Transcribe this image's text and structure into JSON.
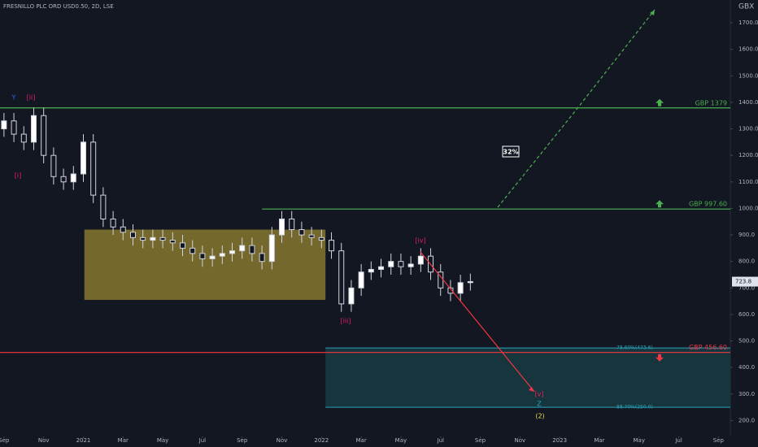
{
  "chart_data": {
    "type": "candlestick",
    "title": "FRESNILLO PLC ORD USD0.50, 2D, LSE",
    "currency": "GBX",
    "ylim": [
      140,
      1786
    ],
    "xlim": [
      -0.2,
      36.6
    ],
    "yticks": [
      {
        "value": 200,
        "label": "200.0"
      },
      {
        "value": 300,
        "label": "300.0"
      },
      {
        "value": 400,
        "label": "400.0"
      },
      {
        "value": 500,
        "label": "500.0"
      },
      {
        "value": 600,
        "label": "600.0"
      },
      {
        "value": 700,
        "label": "700.0"
      },
      {
        "value": 800,
        "label": "800.0"
      },
      {
        "value": 900,
        "label": "900.0"
      },
      {
        "value": 1000,
        "label": "1000.0"
      },
      {
        "value": 1100,
        "label": "1100.0"
      },
      {
        "value": 1200,
        "label": "1200.0"
      },
      {
        "value": 1300,
        "label": "1300.0"
      },
      {
        "value": 1400,
        "label": "1400.0"
      },
      {
        "value": 1500,
        "label": "1500.0"
      },
      {
        "value": 1600,
        "label": "1600.0"
      },
      {
        "value": 1700,
        "label": "1700.0"
      }
    ],
    "xticks": [
      {
        "value": 0,
        "label": "Sep"
      },
      {
        "value": 2,
        "label": "Nov"
      },
      {
        "value": 4,
        "label": "2021"
      },
      {
        "value": 6,
        "label": "Mar"
      },
      {
        "value": 8,
        "label": "May"
      },
      {
        "value": 10,
        "label": "Jul"
      },
      {
        "value": 12,
        "label": "Sep"
      },
      {
        "value": 14,
        "label": "Nov"
      },
      {
        "value": 16,
        "label": "2022"
      },
      {
        "value": 18,
        "label": "Mar"
      },
      {
        "value": 20,
        "label": "May"
      },
      {
        "value": 22,
        "label": "Jul"
      },
      {
        "value": 24,
        "label": "Sep"
      },
      {
        "value": 26,
        "label": "Nov"
      },
      {
        "value": 28,
        "label": "2023"
      },
      {
        "value": 30,
        "label": "Mar"
      },
      {
        "value": 32,
        "label": "May"
      },
      {
        "value": 34,
        "label": "Jul"
      },
      {
        "value": 36,
        "label": "Sep"
      }
    ],
    "x": [
      0,
      0.5,
      1,
      1.5,
      2,
      2.5,
      3,
      3.5,
      4,
      4.5,
      5,
      5.5,
      6,
      6.5,
      7,
      7.5,
      8,
      8.5,
      9,
      9.5,
      10,
      10.5,
      11,
      11.5,
      12,
      12.5,
      13,
      13.5,
      14,
      14.5,
      15,
      15.5,
      16,
      16.5,
      17,
      17.5,
      18,
      18.5,
      19,
      19.5,
      20,
      20.5,
      21,
      21.5,
      22,
      22.5,
      23,
      23.5
    ],
    "open": [
      1300,
      1330,
      1280,
      1250,
      1350,
      1200,
      1120,
      1100,
      1130,
      1250,
      1050,
      960,
      930,
      910,
      890,
      880,
      890,
      880,
      870,
      850,
      830,
      810,
      820,
      830,
      840,
      860,
      830,
      800,
      900,
      960,
      920,
      900,
      890,
      880,
      840,
      640,
      700,
      760,
      770,
      780,
      800,
      780,
      790,
      820,
      760,
      700,
      680,
      720
    ],
    "high": [
      1360,
      1360,
      1310,
      1380,
      1380,
      1230,
      1150,
      1160,
      1280,
      1280,
      1080,
      990,
      960,
      940,
      920,
      920,
      920,
      910,
      900,
      880,
      860,
      850,
      860,
      870,
      890,
      890,
      860,
      930,
      990,
      990,
      950,
      930,
      920,
      910,
      870,
      730,
      790,
      800,
      810,
      830,
      830,
      820,
      850,
      850,
      790,
      730,
      750,
      754
    ],
    "low": [
      1270,
      1250,
      1220,
      1220,
      1170,
      1090,
      1070,
      1070,
      1100,
      1020,
      930,
      900,
      880,
      860,
      850,
      850,
      850,
      840,
      820,
      800,
      780,
      780,
      790,
      800,
      810,
      800,
      770,
      770,
      870,
      890,
      870,
      860,
      850,
      810,
      610,
      610,
      670,
      730,
      740,
      750,
      750,
      750,
      760,
      730,
      670,
      650,
      650,
      690
    ],
    "close": [
      1330,
      1280,
      1250,
      1350,
      1200,
      1120,
      1100,
      1130,
      1250,
      1050,
      960,
      930,
      910,
      890,
      880,
      890,
      880,
      870,
      850,
      830,
      810,
      820,
      830,
      840,
      860,
      830,
      800,
      900,
      960,
      920,
      900,
      890,
      880,
      840,
      640,
      700,
      760,
      770,
      780,
      800,
      780,
      790,
      820,
      760,
      700,
      680,
      720,
      724
    ],
    "last_price": {
      "value": 723.8,
      "label": "723.8"
    },
    "levels": [
      {
        "value": 1379,
        "label": "GBP 1379",
        "color": "#4caf50"
      },
      {
        "value": 997.6,
        "label": "GBP 997.60",
        "color": "#4caf50"
      },
      {
        "value": 456.6,
        "label": "GBP 456.60",
        "color": "#f23645"
      }
    ],
    "zones": [
      {
        "top": 920,
        "bottom": 655,
        "color": "#7a6d2e"
      },
      {
        "top": 473.6,
        "bottom": 250,
        "color": "#173840",
        "top_label": "78.60%(473.6)",
        "bottom_label": "88.70%(250.0)"
      }
    ],
    "wave_labels": [
      "Y",
      "[ii]",
      "[i]",
      "[iii]",
      "[iv]",
      "[v]",
      "Z",
      "(2)"
    ],
    "annotation": "32%"
  }
}
